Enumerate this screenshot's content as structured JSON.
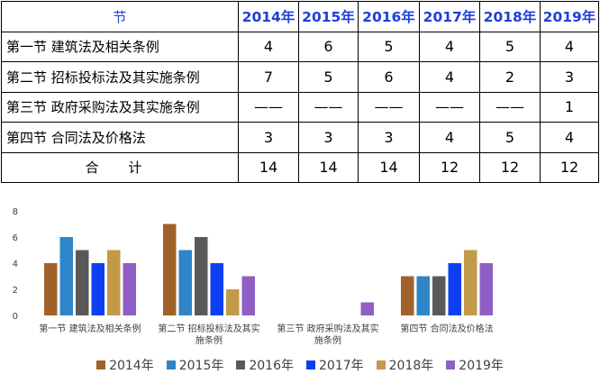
{
  "table": {
    "header": {
      "section_label": "节",
      "years": [
        "2014年",
        "2015年",
        "2016年",
        "2017年",
        "2018年",
        "2019年"
      ]
    },
    "rows": [
      {
        "name": "第一节 建筑法及相关条例",
        "values": [
          "4",
          "6",
          "5",
          "4",
          "5",
          "4"
        ]
      },
      {
        "name": "第二节 招标投标法及其实施条例",
        "values": [
          "7",
          "5",
          "6",
          "4",
          "2",
          "3"
        ]
      },
      {
        "name": "第三节 政府采购法及其实施条例",
        "values": [
          "——",
          "——",
          "——",
          "——",
          "——",
          "1"
        ]
      },
      {
        "name": "第四节 合同法及价格法",
        "values": [
          "3",
          "3",
          "3",
          "4",
          "5",
          "4"
        ]
      }
    ],
    "total": {
      "label": "合 计",
      "values": [
        "14",
        "14",
        "14",
        "12",
        "12",
        "12"
      ]
    }
  },
  "chart_data": {
    "type": "bar",
    "categories": [
      [
        "第一节 建筑法及相关条例"
      ],
      [
        "第二节 招标投标法及其实",
        "施条例"
      ],
      [
        "第三节 政府采购法及其实",
        "施条例"
      ],
      [
        "第四节 合同法及价格法"
      ]
    ],
    "series": [
      {
        "name": "2014年",
        "color": "#a0622a",
        "values": [
          4,
          7,
          0,
          3
        ]
      },
      {
        "name": "2015年",
        "color": "#2e86c8",
        "values": [
          6,
          5,
          0,
          3
        ]
      },
      {
        "name": "2016年",
        "color": "#595959",
        "values": [
          5,
          6,
          0,
          3
        ]
      },
      {
        "name": "2017年",
        "color": "#0f3ff2",
        "values": [
          4,
          4,
          0,
          4
        ]
      },
      {
        "name": "2018年",
        "color": "#c39a48",
        "values": [
          5,
          2,
          0,
          5
        ]
      },
      {
        "name": "2019年",
        "color": "#8f5fc6",
        "values": [
          4,
          3,
          1,
          4
        ]
      }
    ],
    "ylim": [
      0,
      8
    ],
    "yticks": [
      "0",
      "2",
      "4",
      "6",
      "8"
    ],
    "grid": false,
    "legend": "bottom"
  }
}
